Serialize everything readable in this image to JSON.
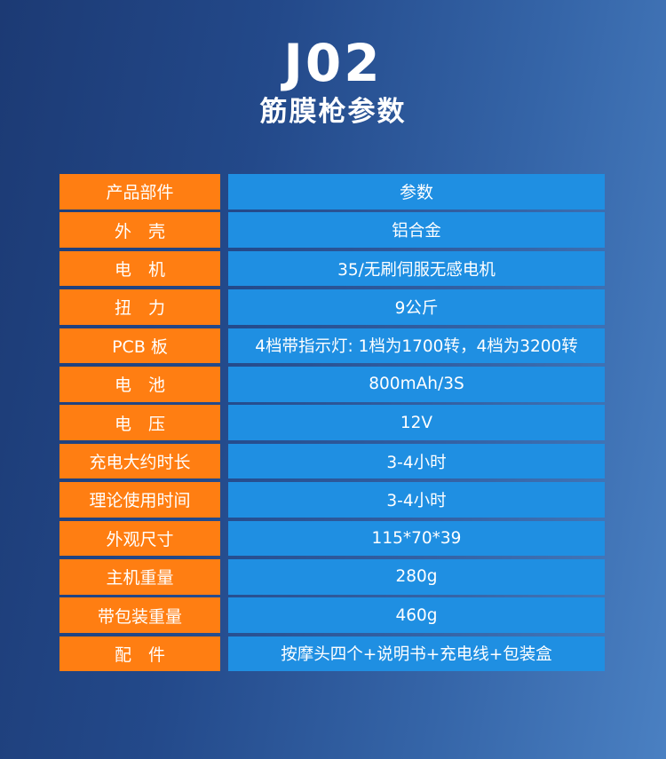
{
  "header": {
    "model": "J02",
    "subtitle": "筋膜枪参数"
  },
  "table": {
    "head": {
      "label": "产品部件",
      "value": "参数"
    },
    "rows": [
      {
        "label": "外　壳",
        "value": "铝合金"
      },
      {
        "label": "电　机",
        "value": "35/无刷伺服无感电机"
      },
      {
        "label": "扭　力",
        "value": "9公斤"
      },
      {
        "label": "PCB 板",
        "value": "4档带指示灯: 1档为1700转，4档为3200转"
      },
      {
        "label": "电　池",
        "value": "800mAh/3S"
      },
      {
        "label": "电　压",
        "value": "12V"
      },
      {
        "label": "充电大约时长",
        "value": "3-4小时"
      },
      {
        "label": "理论使用时间",
        "value": "3-4小时"
      },
      {
        "label": "外观尺寸",
        "value": "115*70*39"
      },
      {
        "label": "主机重量",
        "value": "280g"
      },
      {
        "label": "带包装重量",
        "value": "460g"
      },
      {
        "label": "配　件",
        "value": "按摩头四个+说明书+充电线+包装盒"
      }
    ]
  },
  "colors": {
    "label_bg": "#ff7e12",
    "value_bg": "#1f8fe2",
    "background_dark": "#1c3a74",
    "background_light": "#4a80c2"
  }
}
